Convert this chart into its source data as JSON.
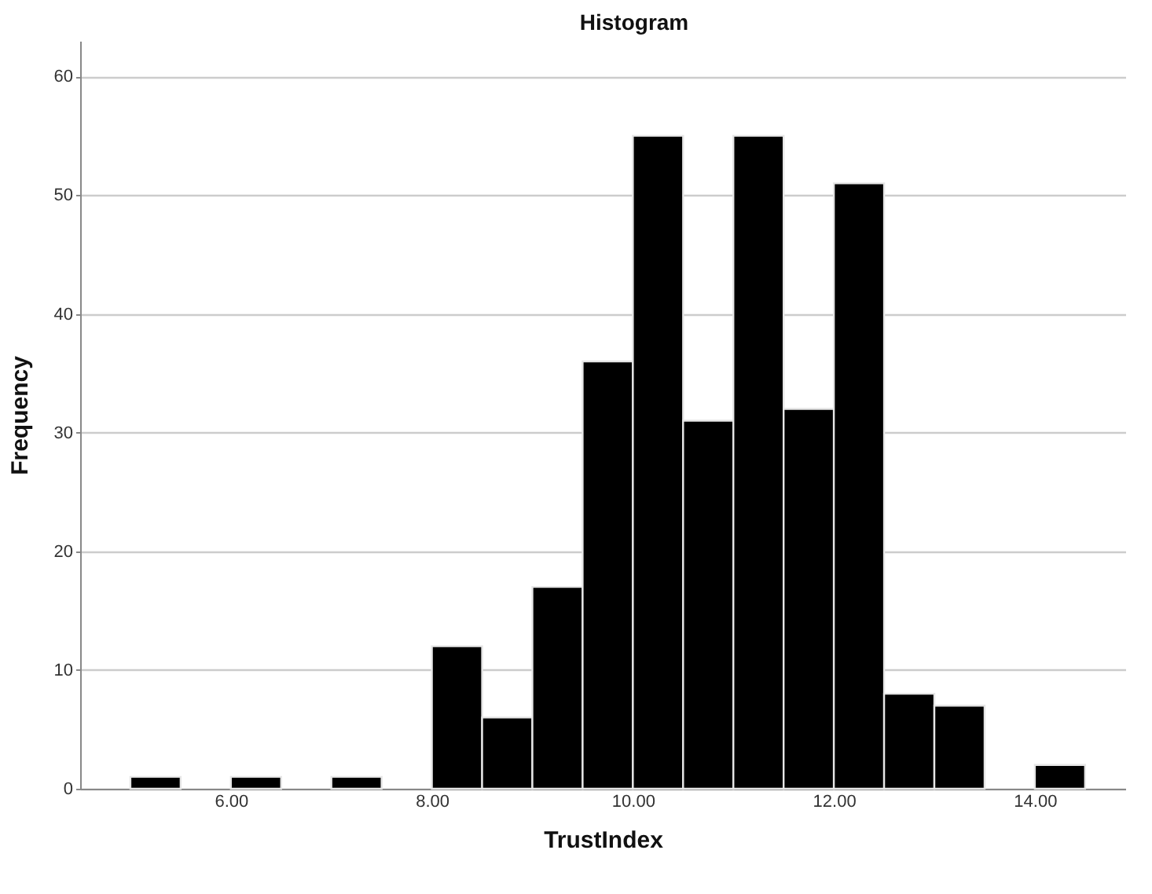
{
  "chart_data": {
    "type": "histogram",
    "title": "Histogram",
    "xlabel": "TrustIndex",
    "ylabel": "Frequency",
    "bins": [
      5.0,
      5.5,
      6.0,
      6.5,
      7.0,
      7.5,
      8.0,
      8.5,
      9.0,
      9.5,
      10.0,
      10.5,
      11.0,
      11.5,
      12.0,
      12.5,
      13.0,
      13.5,
      14.0,
      14.5
    ],
    "values": [
      1,
      0,
      1,
      0,
      1,
      0,
      12,
      6,
      17,
      36,
      55,
      31,
      55,
      32,
      51,
      8,
      7,
      0,
      2
    ],
    "color": "#000000",
    "xlim": [
      4.5,
      14.9
    ],
    "ylim": [
      0,
      63
    ],
    "xticks": [
      {
        "value": 6,
        "label": "6.00"
      },
      {
        "value": 8,
        "label": "8.00"
      },
      {
        "value": 10,
        "label": "10.00"
      },
      {
        "value": 12,
        "label": "12.00"
      },
      {
        "value": 14,
        "label": "14.00"
      }
    ],
    "yticks": [
      0,
      10,
      20,
      30,
      40,
      50,
      60
    ],
    "grid": "y"
  }
}
